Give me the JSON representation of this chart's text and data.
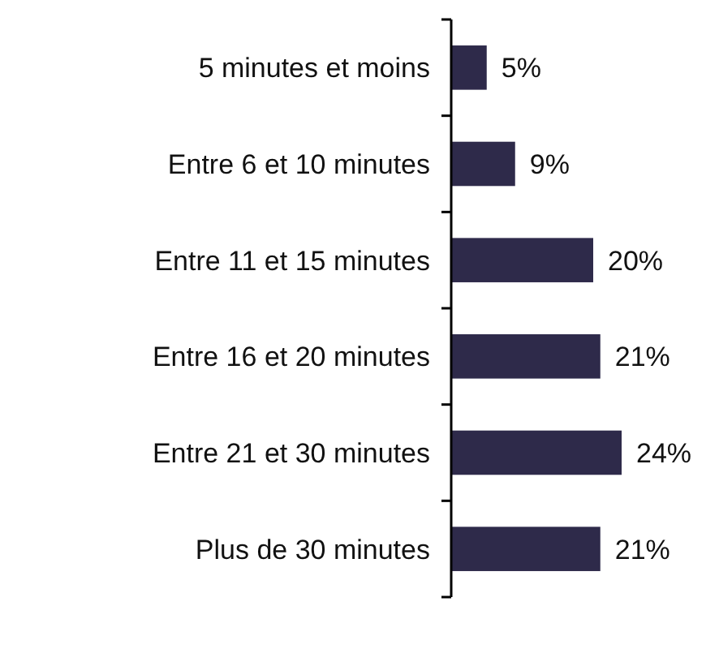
{
  "chart_data": {
    "type": "bar",
    "orientation": "horizontal",
    "categories": [
      "5 minutes et moins",
      "Entre 6 et 10 minutes",
      "Entre 11 et 15 minutes",
      "Entre 16 et 20 minutes",
      "Entre 21 et 30 minutes",
      "Plus de 30 minutes"
    ],
    "values": [
      5,
      9,
      20,
      21,
      24,
      21
    ],
    "value_labels": [
      "5%",
      "9%",
      "20%",
      "21%",
      "24%",
      "21%"
    ],
    "color": "#2e2a4a"
  }
}
